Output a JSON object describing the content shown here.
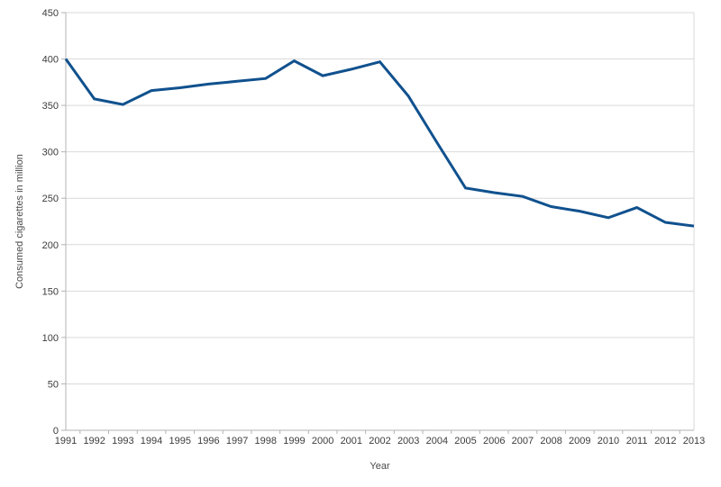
{
  "chart_data": {
    "type": "line",
    "title": "",
    "xlabel": "Year",
    "ylabel": "Consumed cigarettes in million",
    "categories": [
      "1991",
      "1992",
      "1993",
      "1994",
      "1995",
      "1996",
      "1997",
      "1998",
      "1999",
      "2000",
      "2001",
      "2002",
      "2003",
      "2004",
      "2005",
      "2006",
      "2007",
      "2008",
      "2009",
      "2010",
      "2011",
      "2012",
      "2013"
    ],
    "series": [
      {
        "name": "Consumed cigarettes",
        "values": [
          400,
          357,
          351,
          366,
          369,
          373,
          376,
          379,
          398,
          382,
          389,
          397,
          360,
          310,
          261,
          256,
          252,
          241,
          236,
          229,
          240,
          224,
          220
        ]
      }
    ],
    "ylim": [
      0,
      450
    ],
    "ytick_interval": 50,
    "yticks": [
      0,
      50,
      100,
      150,
      200,
      250,
      300,
      350,
      400,
      450
    ],
    "grid": true,
    "legend": "none",
    "colors": {
      "line": "#10518e",
      "gridline": "#d9d9d9",
      "axis": "#b3b3b3",
      "tick_label": "#3c3c3c",
      "axis_title": "#4a4a4a",
      "background": "#ffffff"
    }
  }
}
